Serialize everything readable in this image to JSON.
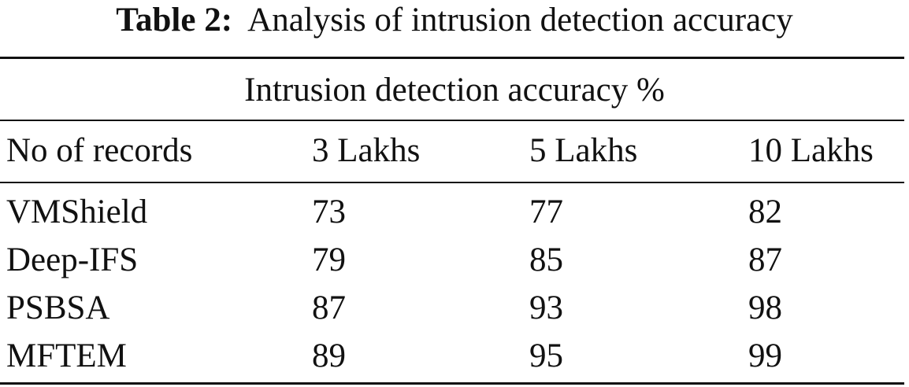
{
  "caption": {
    "label": "Table 2:",
    "text": "Analysis of intrusion detection accuracy"
  },
  "table": {
    "group_header": "Intrusion detection accuracy %",
    "columns": [
      "No of records",
      "3 Lakhs",
      "5 Lakhs",
      "10 Lakhs"
    ],
    "rows": [
      [
        "VMShield",
        73,
        77,
        82
      ],
      [
        "Deep-IFS",
        79,
        85,
        87
      ],
      [
        "PSBSA",
        87,
        93,
        98
      ],
      [
        "MFTEM",
        89,
        95,
        99
      ]
    ]
  }
}
